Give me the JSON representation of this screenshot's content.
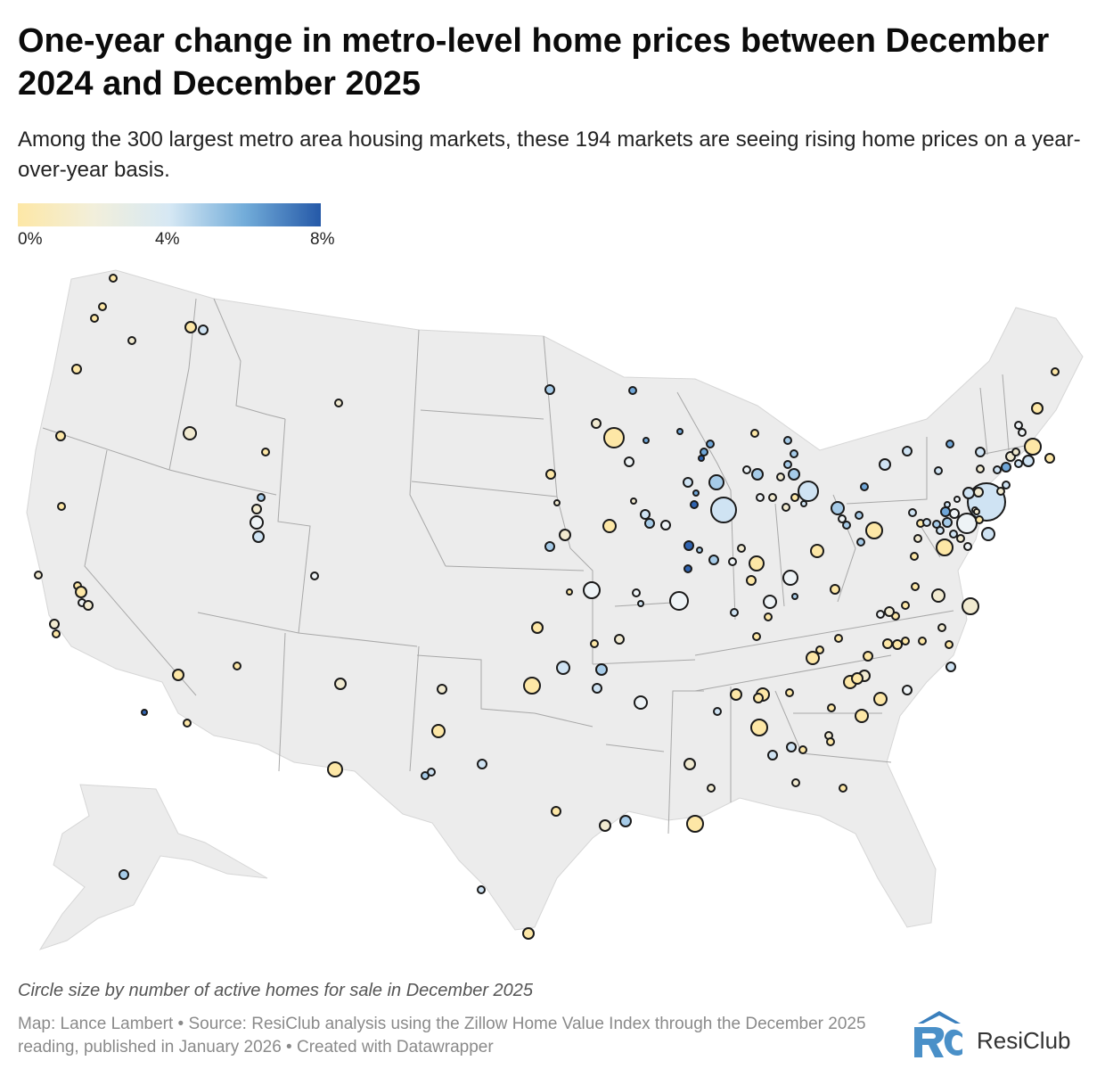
{
  "header": {
    "title": "One-year change in metro-level home prices between December 2024 and December 2025",
    "subtitle": "Among the 300 largest metro area housing markets, these 194 markets are seeing rising home prices on a year-over-year basis."
  },
  "legend": {
    "labels": [
      "0%",
      "4%",
      "8%"
    ],
    "colors": [
      "#fde7a6",
      "#f2efdb",
      "#d6e8f4",
      "#72acd9",
      "#2559a8"
    ]
  },
  "colors": {
    "land": "#ececec",
    "border": "#a8a8a8",
    "dot_stroke": "#1a1a1a"
  },
  "chart_data": {
    "type": "bubble-map",
    "region": "United States (lower 48 + Alaska)",
    "value_label": "One-year change in home prices (%)",
    "value_range": [
      0,
      8
    ],
    "size_label": "number of active homes for sale in December 2025",
    "metros_count": 194
  },
  "footer": {
    "size_note": "Circle size by number of active homes for sale in December 2025",
    "credits": "Map: Lance Lambert • Source: ResiClub analysis using the Zillow Home Value Index through the December 2025 reading, published in January 2026 • Created with Datawrapper",
    "brand_name": "ResiClub",
    "brand_color": "#4a90c8"
  }
}
